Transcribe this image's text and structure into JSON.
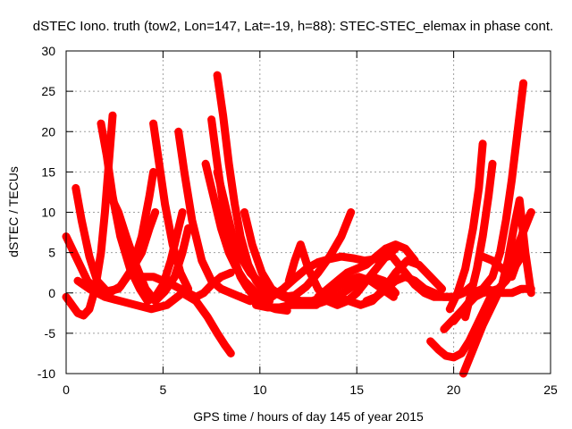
{
  "chart_data": {
    "type": "scatter",
    "title": "dSTEC Iono. truth (tow2, Lon=147, Lat=-19, h=88): STEC-STEC_elemax in phase cont.",
    "xlabel": "GPS time / hours of day 145 of year 2015",
    "ylabel": "dSTEC  / TECUs",
    "xlim": [
      0,
      25
    ],
    "ylim": [
      -10,
      30
    ],
    "xticks": [
      0,
      5,
      10,
      15,
      20,
      25
    ],
    "yticks": [
      -10,
      -5,
      0,
      5,
      10,
      15,
      20,
      25,
      30
    ],
    "grid": true,
    "marker": "plus",
    "color": "#ff0000",
    "series": [
      {
        "x": [
          0.0,
          0.3,
          0.6,
          0.9,
          1.2,
          1.5,
          1.8,
          2.0,
          2.2,
          2.4
        ],
        "y": [
          -0.5,
          -1.5,
          -2.5,
          -2.8,
          -2.0,
          0.5,
          5.0,
          10.0,
          16.0,
          22.0
        ]
      },
      {
        "x": [
          0.0,
          0.3,
          0.7,
          1.1,
          1.6,
          2.2,
          2.8,
          3.4,
          3.9,
          4.3,
          4.5
        ],
        "y": [
          7.0,
          5.5,
          3.5,
          1.5,
          0.3,
          0.0,
          0.8,
          3.0,
          7.0,
          12.0,
          15.0
        ]
      },
      {
        "x": [
          0.5,
          0.8,
          1.2,
          1.6,
          2.1,
          2.7,
          3.3,
          3.9,
          4.3,
          4.6
        ],
        "y": [
          13.0,
          9.0,
          4.5,
          1.5,
          0.2,
          0.5,
          2.5,
          5.0,
          8.0,
          10.0
        ]
      },
      {
        "x": [
          1.8,
          2.1,
          2.4,
          2.8,
          3.3,
          3.8,
          4.2,
          4.6,
          5.0,
          5.4,
          5.8,
          6.0
        ],
        "y": [
          21.0,
          17.0,
          12.0,
          7.0,
          3.0,
          0.5,
          -1.0,
          -0.5,
          1.0,
          4.0,
          8.0,
          10.0
        ]
      },
      {
        "x": [
          2.3,
          2.7,
          3.1,
          3.6,
          4.1,
          4.6,
          5.1,
          5.6,
          6.0,
          6.3
        ],
        "y": [
          12.0,
          10.0,
          7.0,
          3.5,
          0.5,
          -1.0,
          0.2,
          2.0,
          5.0,
          8.0
        ]
      },
      {
        "x": [
          4.0,
          4.5,
          5.0,
          5.5,
          5.9,
          6.3,
          6.7,
          7.1,
          7.5,
          8.0,
          8.5
        ],
        "y": [
          2.0,
          2.0,
          1.5,
          1.0,
          0.5,
          0.0,
          -0.5,
          0.0,
          1.0,
          2.0,
          2.5
        ]
      },
      {
        "x": [
          4.5,
          4.8,
          5.1,
          5.5,
          5.9,
          6.3
        ],
        "y": [
          21.0,
          16.0,
          11.0,
          6.0,
          2.5,
          0.5
        ]
      },
      {
        "x": [
          5.8,
          6.1,
          6.5,
          7.0,
          7.5,
          8.0,
          8.5,
          9.0,
          9.5
        ],
        "y": [
          20.0,
          15.0,
          9.0,
          4.0,
          1.5,
          0.5,
          0.0,
          -0.5,
          -1.0
        ]
      },
      {
        "x": [
          7.5,
          7.8,
          8.1,
          8.4,
          8.7,
          9.0,
          9.3,
          9.7,
          10.2,
          10.8,
          11.4
        ],
        "y": [
          21.5,
          16.0,
          11.0,
          7.0,
          4.0,
          2.0,
          0.8,
          -0.5,
          -1.5,
          -2.0,
          -2.2
        ]
      },
      {
        "x": [
          7.8,
          8.1,
          8.4,
          8.7,
          9.0,
          9.4,
          9.8,
          10.3
        ],
        "y": [
          27.0,
          22.0,
          16.0,
          11.0,
          7.0,
          3.5,
          1.5,
          0.0
        ]
      },
      {
        "x": [
          7.2,
          7.6,
          8.0,
          8.4,
          8.8,
          9.2,
          9.6,
          10.0,
          10.5
        ],
        "y": [
          16.0,
          12.0,
          8.0,
          5.0,
          3.0,
          1.5,
          0.5,
          -0.5,
          -1.0
        ]
      },
      {
        "x": [
          7.8,
          8.2,
          8.6,
          9.0,
          9.5,
          10.1,
          10.8,
          11.5,
          12.2,
          12.9
        ],
        "y": [
          15.0,
          11.0,
          7.0,
          4.5,
          2.5,
          1.0,
          0.0,
          -0.8,
          -1.2,
          -1.5
        ]
      },
      {
        "x": [
          0.6,
          1.2,
          2.0,
          2.8,
          3.6,
          4.4,
          5.2,
          6.0,
          6.7,
          7.3,
          7.8,
          8.2,
          8.5
        ],
        "y": [
          1.5,
          0.5,
          -0.5,
          -1.0,
          -1.5,
          -2.0,
          -1.5,
          0.0,
          -1.0,
          -3.0,
          -5.0,
          -6.5,
          -7.5
        ]
      },
      {
        "x": [
          9.2,
          9.6,
          10.1,
          10.6,
          11.2,
          11.8,
          12.4,
          13.0,
          13.6,
          14.2,
          14.7
        ],
        "y": [
          10.0,
          6.0,
          2.5,
          0.5,
          -0.5,
          -0.3,
          0.8,
          2.5,
          4.5,
          7.0,
          10.0
        ]
      },
      {
        "x": [
          9.8,
          10.4,
          11.0,
          11.6,
          12.2,
          12.8,
          13.4,
          14.0,
          14.6,
          15.2,
          15.8,
          16.4,
          17.0
        ],
        "y": [
          -1.5,
          -1.8,
          -1.8,
          -1.5,
          -1.5,
          -1.5,
          -1.0,
          -0.5,
          0.5,
          1.5,
          2.0,
          1.5,
          0.0
        ]
      },
      {
        "x": [
          10.0,
          10.6,
          11.2,
          11.8,
          12.4,
          13.0,
          13.6,
          14.2,
          14.8,
          15.4,
          16.0,
          16.6
        ],
        "y": [
          -1.0,
          -0.5,
          0.5,
          1.8,
          3.0,
          3.8,
          4.2,
          4.5,
          4.3,
          4.0,
          4.2,
          4.5
        ]
      },
      {
        "x": [
          11.5,
          11.8,
          12.1,
          12.5,
          13.0,
          13.5,
          14.0,
          14.5,
          15.0,
          15.5,
          16.0,
          16.5,
          17.0
        ],
        "y": [
          1.5,
          4.0,
          6.0,
          3.0,
          0.5,
          -1.0,
          -1.5,
          -1.0,
          0.0,
          1.5,
          3.0,
          4.5,
          5.5
        ]
      },
      {
        "x": [
          11.0,
          11.5,
          12.1,
          12.7,
          13.3,
          13.9,
          14.5,
          15.1,
          15.7,
          16.3,
          16.9
        ],
        "y": [
          0.0,
          -0.5,
          -1.0,
          -1.0,
          -0.5,
          0.5,
          1.5,
          2.0,
          1.5,
          0.5,
          -0.5
        ]
      },
      {
        "x": [
          13.0,
          13.5,
          14.0,
          14.5,
          15.0,
          15.5,
          16.0,
          16.5,
          17.0,
          17.5,
          18.0
        ],
        "y": [
          -0.5,
          0.5,
          1.5,
          2.5,
          3.0,
          3.5,
          4.5,
          5.5,
          6.0,
          5.5,
          4.0
        ]
      },
      {
        "x": [
          14.0,
          14.6,
          15.2,
          15.8,
          16.4,
          17.0,
          17.6,
          18.2,
          18.8,
          19.4
        ],
        "y": [
          -0.5,
          -1.0,
          -1.5,
          -1.0,
          0.5,
          2.5,
          4.0,
          3.5,
          2.0,
          0.5
        ]
      },
      {
        "x": [
          15.5,
          16.0,
          16.5,
          17.0,
          17.5,
          18.0,
          18.5,
          19.0,
          19.5,
          20.0
        ],
        "y": [
          -1.0,
          -0.5,
          0.5,
          1.5,
          2.0,
          1.5,
          0.5,
          0.0,
          -0.5,
          -0.5
        ]
      },
      {
        "x": [
          16.5,
          17.0,
          17.5,
          18.0,
          18.5,
          19.0,
          19.5,
          20.0,
          20.5,
          21.0
        ],
        "y": [
          5.5,
          4.0,
          2.5,
          1.0,
          0.0,
          -0.5,
          -0.5,
          -0.5,
          0.0,
          1.0
        ]
      },
      {
        "x": [
          19.5,
          19.9,
          20.3,
          20.7,
          21.1,
          21.5,
          21.9,
          22.3,
          22.7,
          23.1,
          23.5
        ],
        "y": [
          -4.5,
          -3.5,
          -2.5,
          -1.5,
          -0.5,
          0.0,
          0.2,
          0.5,
          1.5,
          3.0,
          4.5
        ]
      },
      {
        "x": [
          18.8,
          19.2,
          19.6,
          20.0,
          20.4,
          20.8,
          21.2,
          21.6,
          22.0
        ],
        "y": [
          -6.0,
          -7.0,
          -7.8,
          -8.0,
          -7.5,
          -6.0,
          -4.0,
          -2.0,
          0.0
        ]
      },
      {
        "x": [
          19.8,
          20.2,
          20.6,
          21.0,
          21.3,
          21.5
        ],
        "y": [
          -2.0,
          0.0,
          3.0,
          8.0,
          13.0,
          18.5
        ]
      },
      {
        "x": [
          20.6,
          20.9,
          21.2,
          21.5,
          21.8,
          22.0
        ],
        "y": [
          -3.0,
          0.0,
          3.0,
          7.0,
          12.0,
          16.0
        ]
      },
      {
        "x": [
          20.5,
          21.0,
          21.5,
          22.0,
          22.5,
          23.0,
          23.5,
          24.0
        ],
        "y": [
          -10.0,
          -7.0,
          -4.0,
          -1.5,
          1.0,
          4.0,
          7.0,
          10.0
        ]
      },
      {
        "x": [
          21.0,
          21.5,
          22.0,
          22.4,
          22.7,
          23.0,
          23.3,
          23.6
        ],
        "y": [
          0.0,
          0.5,
          2.0,
          5.0,
          9.0,
          14.0,
          20.0,
          26.0
        ]
      },
      {
        "x": [
          21.5,
          22.0,
          22.5,
          23.0,
          23.3,
          23.6,
          24.0
        ],
        "y": [
          4.5,
          4.0,
          3.0,
          2.0,
          4.0,
          8.0,
          10.0
        ]
      },
      {
        "x": [
          22.5,
          22.8,
          23.1,
          23.4,
          23.7,
          24.0
        ],
        "y": [
          1.0,
          4.0,
          8.0,
          11.5,
          5.0,
          0.0
        ]
      },
      {
        "x": [
          20.0,
          20.5,
          21.0,
          21.5,
          22.0,
          22.5,
          23.0,
          23.5,
          24.0
        ],
        "y": [
          -3.5,
          -2.0,
          -0.5,
          0.5,
          0.3,
          0.0,
          0.0,
          0.5,
          0.5
        ]
      }
    ]
  }
}
